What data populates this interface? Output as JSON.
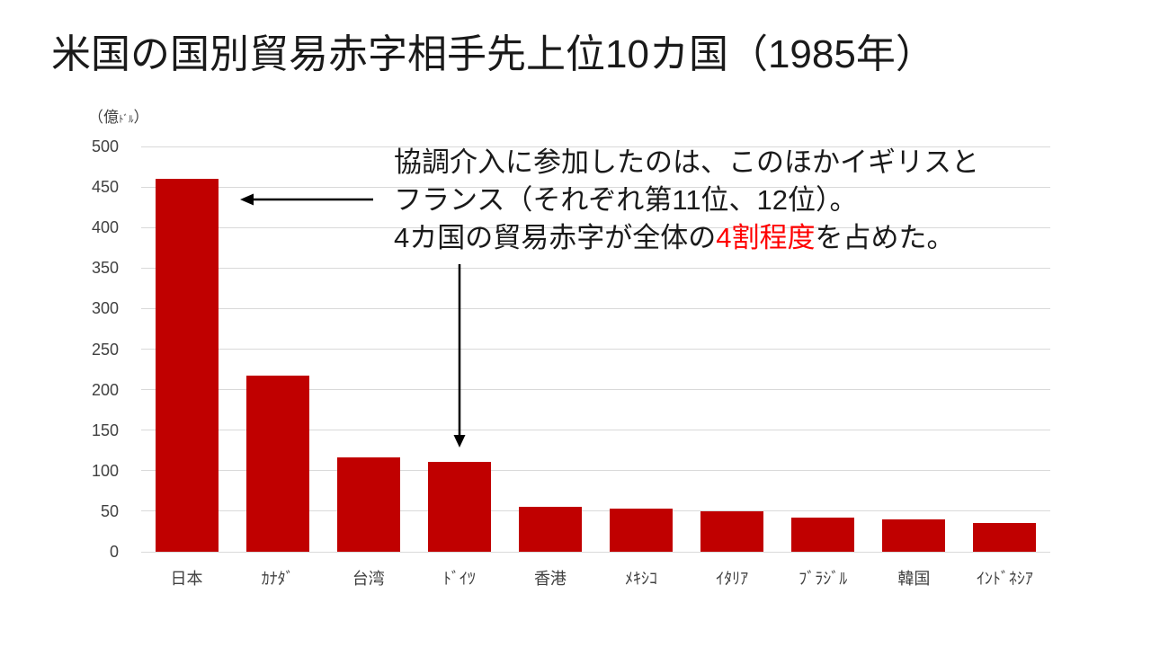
{
  "title": "米国の国別貿易赤字相手先上位10カ国（1985年）",
  "y_axis_unit": {
    "prefix": "（億",
    "small": "ﾄﾞﾙ",
    "suffix": "）"
  },
  "annotation": {
    "line1": "協調介入に参加したのは、このほかイギリスと",
    "line2": "フランス（それぞれ第11位、12位）。",
    "line3_prefix": "4カ国の貿易赤字が全体の",
    "line3_highlight": "4割程度",
    "line3_suffix": "を占めた。"
  },
  "colors": {
    "bar": "#c00000",
    "highlight_text": "#ff0000",
    "gridline": "#d9d9d9",
    "axis_text": "#404040",
    "title_text": "#1a1a1a",
    "annotation_text": "#1a1a1a",
    "arrow": "#000000"
  },
  "chart_data": {
    "type": "bar",
    "title": "米国の国別貿易赤字相手先上位10カ国（1985年）",
    "categories": [
      "日本",
      "ｶﾅﾀﾞ",
      "台湾",
      "ﾄﾞｲﾂ",
      "香港",
      "ﾒｷｼｺ",
      "ｲﾀﾘｱ",
      "ﾌﾞﾗｼﾞﾙ",
      "韓国",
      "ｲﾝﾄﾞﾈｼｱ"
    ],
    "values": [
      460,
      217,
      116,
      111,
      55,
      53,
      50,
      42,
      40,
      36
    ],
    "xlabel": "",
    "ylabel": "（億ﾄﾞﾙ）",
    "ylim": [
      0,
      500
    ],
    "ytick_step": 50,
    "grid": true,
    "legend": false
  }
}
